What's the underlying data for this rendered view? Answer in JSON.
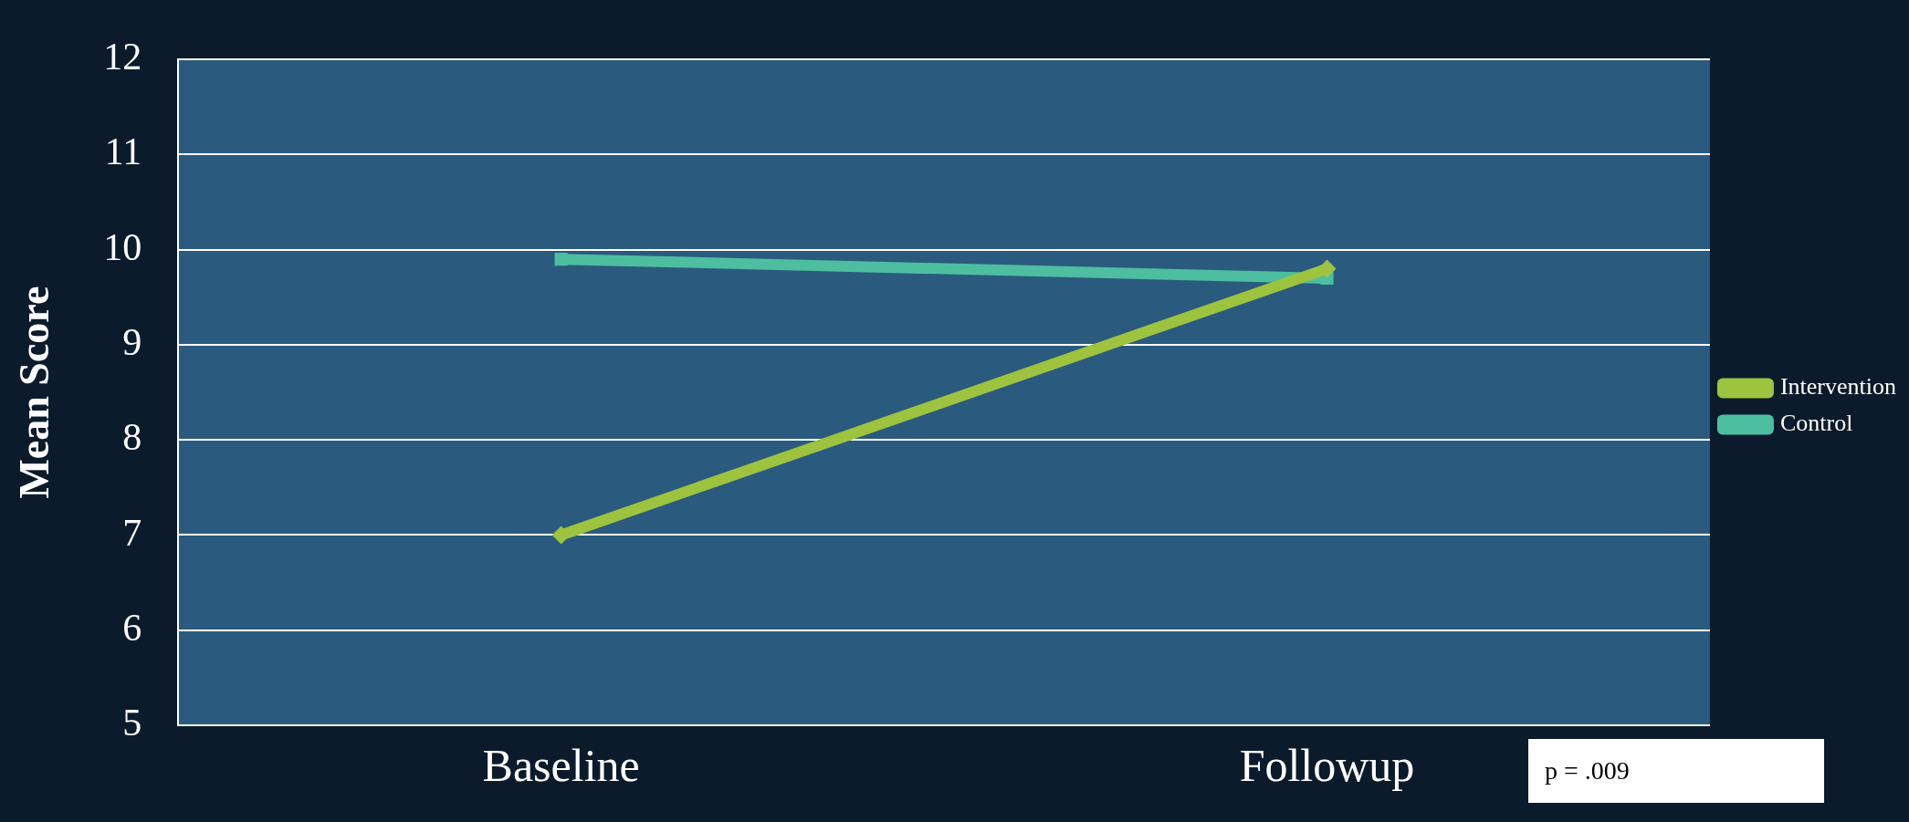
{
  "chart_data": {
    "type": "line",
    "ylabel": "Mean Score",
    "categories": [
      "Baseline",
      "Followup"
    ],
    "series": [
      {
        "name": "Intervention",
        "color": "#9dc33f",
        "marker": "diamond",
        "values": [
          7.0,
          9.8
        ]
      },
      {
        "name": "Control",
        "color": "#4dbfa0",
        "marker": "square",
        "values": [
          9.9,
          9.7
        ]
      }
    ],
    "ylim": [
      5,
      12
    ],
    "yticks": [
      5,
      6,
      7,
      8,
      9,
      10,
      11,
      12
    ],
    "grid": "y",
    "legend": "right",
    "annotations": [
      "p = .009"
    ]
  }
}
